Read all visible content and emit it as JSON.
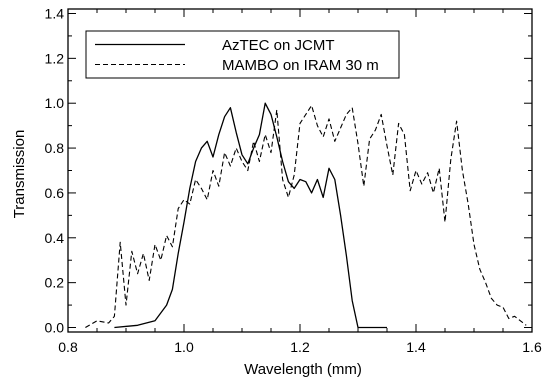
{
  "chart_data": {
    "type": "line",
    "title": "",
    "xlabel": "Wavelength (mm)",
    "ylabel": "Transmission",
    "xlim": [
      0.8,
      1.6
    ],
    "ylim": [
      -0.02,
      1.42
    ],
    "xticks": [
      0.8,
      1.0,
      1.2,
      1.4,
      1.6
    ],
    "yticks": [
      0.0,
      0.2,
      0.4,
      0.6,
      0.8,
      1.0,
      1.2,
      1.4
    ],
    "xtick_labels": [
      "0.8",
      "1.0",
      "1.2",
      "1.4",
      "1.6"
    ],
    "ytick_labels": [
      "0.0",
      "0.2",
      "0.4",
      "0.6",
      "0.8",
      "1.0",
      "1.2",
      "1.4"
    ],
    "grid": false,
    "legend_position": "top-left",
    "series": [
      {
        "name": "AzTEC on JCMT",
        "style": "solid",
        "color": "#000000",
        "x": [
          0.88,
          0.92,
          0.95,
          0.97,
          0.98,
          0.99,
          1.0,
          1.01,
          1.02,
          1.03,
          1.04,
          1.05,
          1.06,
          1.07,
          1.08,
          1.09,
          1.1,
          1.11,
          1.12,
          1.13,
          1.14,
          1.15,
          1.16,
          1.17,
          1.18,
          1.19,
          1.2,
          1.21,
          1.22,
          1.23,
          1.24,
          1.25,
          1.26,
          1.27,
          1.28,
          1.29,
          1.3,
          1.35
        ],
        "y": [
          0.0,
          0.01,
          0.03,
          0.1,
          0.17,
          0.33,
          0.47,
          0.62,
          0.74,
          0.8,
          0.83,
          0.76,
          0.86,
          0.94,
          0.98,
          0.87,
          0.77,
          0.73,
          0.8,
          0.86,
          1.0,
          0.95,
          0.85,
          0.74,
          0.65,
          0.62,
          0.66,
          0.65,
          0.6,
          0.66,
          0.58,
          0.71,
          0.66,
          0.5,
          0.32,
          0.12,
          0.0,
          0.0
        ]
      },
      {
        "name": "MAMBO on IRAM 30 m",
        "style": "dashed",
        "color": "#000000",
        "x": [
          0.83,
          0.85,
          0.87,
          0.88,
          0.89,
          0.9,
          0.91,
          0.92,
          0.93,
          0.94,
          0.95,
          0.96,
          0.97,
          0.98,
          0.99,
          1.0,
          1.01,
          1.02,
          1.03,
          1.04,
          1.05,
          1.06,
          1.07,
          1.08,
          1.09,
          1.1,
          1.11,
          1.12,
          1.13,
          1.14,
          1.15,
          1.16,
          1.17,
          1.18,
          1.19,
          1.2,
          1.21,
          1.22,
          1.23,
          1.24,
          1.25,
          1.26,
          1.27,
          1.28,
          1.29,
          1.3,
          1.31,
          1.32,
          1.33,
          1.34,
          1.35,
          1.36,
          1.37,
          1.38,
          1.39,
          1.4,
          1.41,
          1.42,
          1.43,
          1.44,
          1.45,
          1.46,
          1.47,
          1.48,
          1.49,
          1.5,
          1.51,
          1.52,
          1.53,
          1.54,
          1.55,
          1.56,
          1.57,
          1.58,
          1.59
        ],
        "y": [
          0.0,
          0.03,
          0.02,
          0.05,
          0.38,
          0.1,
          0.34,
          0.24,
          0.33,
          0.21,
          0.37,
          0.3,
          0.41,
          0.36,
          0.53,
          0.57,
          0.55,
          0.66,
          0.62,
          0.57,
          0.7,
          0.63,
          0.78,
          0.72,
          0.8,
          0.74,
          0.7,
          0.83,
          0.74,
          0.86,
          0.78,
          0.97,
          0.66,
          0.58,
          0.68,
          0.91,
          0.95,
          0.99,
          0.9,
          0.85,
          0.93,
          0.83,
          0.89,
          0.95,
          0.98,
          0.82,
          0.63,
          0.84,
          0.88,
          0.95,
          0.81,
          0.68,
          0.91,
          0.86,
          0.61,
          0.7,
          0.64,
          0.69,
          0.6,
          0.71,
          0.47,
          0.75,
          0.92,
          0.7,
          0.55,
          0.37,
          0.26,
          0.2,
          0.13,
          0.1,
          0.09,
          0.04,
          0.05,
          0.03,
          0.01
        ]
      }
    ]
  }
}
